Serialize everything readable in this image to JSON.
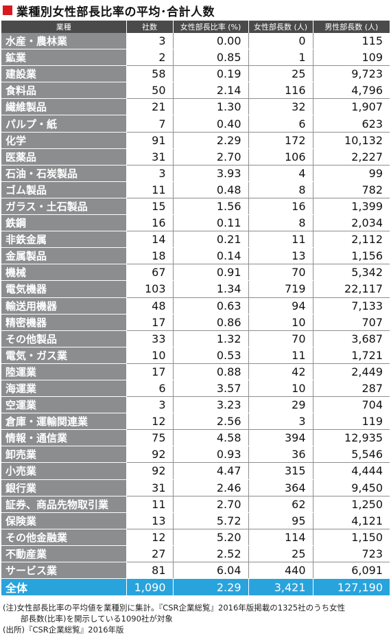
{
  "title": "業種別女性部長比率の平均･合計人数",
  "columns": [
    "業種",
    "社数",
    "女性部長比率 (%)",
    "女性部長数 (人)",
    "男性部長数 (人)"
  ],
  "rows": [
    {
      "name": "水産・農林業",
      "companies": "3",
      "ratio": "0.00",
      "female": "0",
      "male": "115"
    },
    {
      "name": "鉱業",
      "companies": "2",
      "ratio": "0.85",
      "female": "1",
      "male": "109"
    },
    {
      "name": "建設業",
      "companies": "58",
      "ratio": "0.19",
      "female": "25",
      "male": "9,723"
    },
    {
      "name": "食料品",
      "companies": "50",
      "ratio": "2.14",
      "female": "116",
      "male": "4,796"
    },
    {
      "name": "繊維製品",
      "companies": "21",
      "ratio": "1.30",
      "female": "32",
      "male": "1,907"
    },
    {
      "name": "パルプ・紙",
      "companies": "7",
      "ratio": "0.40",
      "female": "6",
      "male": "623"
    },
    {
      "name": "化学",
      "companies": "91",
      "ratio": "2.29",
      "female": "172",
      "male": "10,132"
    },
    {
      "name": "医薬品",
      "companies": "31",
      "ratio": "2.70",
      "female": "106",
      "male": "2,227"
    },
    {
      "name": "石油・石炭製品",
      "companies": "3",
      "ratio": "3.93",
      "female": "4",
      "male": "99"
    },
    {
      "name": "ゴム製品",
      "companies": "11",
      "ratio": "0.48",
      "female": "8",
      "male": "782"
    },
    {
      "name": "ガラス・土石製品",
      "companies": "15",
      "ratio": "1.56",
      "female": "16",
      "male": "1,399"
    },
    {
      "name": "鉄鋼",
      "companies": "16",
      "ratio": "0.11",
      "female": "8",
      "male": "2,034"
    },
    {
      "name": "非鉄金属",
      "companies": "14",
      "ratio": "0.21",
      "female": "11",
      "male": "2,112"
    },
    {
      "name": "金属製品",
      "companies": "18",
      "ratio": "0.14",
      "female": "13",
      "male": "1,156"
    },
    {
      "name": "機械",
      "companies": "67",
      "ratio": "0.91",
      "female": "70",
      "male": "5,342"
    },
    {
      "name": "電気機器",
      "companies": "103",
      "ratio": "1.34",
      "female": "719",
      "male": "22,117"
    },
    {
      "name": "輸送用機器",
      "companies": "48",
      "ratio": "0.63",
      "female": "94",
      "male": "7,133"
    },
    {
      "name": "精密機器",
      "companies": "17",
      "ratio": "0.86",
      "female": "10",
      "male": "707"
    },
    {
      "name": "その他製品",
      "companies": "33",
      "ratio": "1.32",
      "female": "70",
      "male": "3,687"
    },
    {
      "name": "電気・ガス業",
      "companies": "10",
      "ratio": "0.53",
      "female": "11",
      "male": "1,721"
    },
    {
      "name": "陸運業",
      "companies": "17",
      "ratio": "0.88",
      "female": "42",
      "male": "2,449"
    },
    {
      "name": "海運業",
      "companies": "6",
      "ratio": "3.57",
      "female": "10",
      "male": "287"
    },
    {
      "name": "空運業",
      "companies": "3",
      "ratio": "3.23",
      "female": "29",
      "male": "704"
    },
    {
      "name": "倉庫・運輸関連業",
      "companies": "12",
      "ratio": "2.56",
      "female": "3",
      "male": "119"
    },
    {
      "name": "情報・通信業",
      "companies": "75",
      "ratio": "4.58",
      "female": "394",
      "male": "12,935"
    },
    {
      "name": "卸売業",
      "companies": "92",
      "ratio": "0.93",
      "female": "36",
      "male": "5,546"
    },
    {
      "name": "小売業",
      "companies": "92",
      "ratio": "4.47",
      "female": "315",
      "male": "4,444"
    },
    {
      "name": "銀行業",
      "companies": "31",
      "ratio": "2.46",
      "female": "364",
      "male": "9,450"
    },
    {
      "name": "証券、商品先物取引業",
      "companies": "11",
      "ratio": "2.70",
      "female": "62",
      "male": "1,250"
    },
    {
      "name": "保険業",
      "companies": "13",
      "ratio": "5.72",
      "female": "95",
      "male": "4,121"
    },
    {
      "name": "その他金融業",
      "companies": "12",
      "ratio": "5.20",
      "female": "114",
      "male": "1,150"
    },
    {
      "name": "不動産業",
      "companies": "27",
      "ratio": "2.52",
      "female": "25",
      "male": "723"
    },
    {
      "name": "サービス業",
      "companies": "81",
      "ratio": "6.04",
      "female": "440",
      "male": "6,091"
    }
  ],
  "total": {
    "name": "全体",
    "companies": "1,090",
    "ratio": "2.29",
    "female": "3,421",
    "male": "127,190"
  },
  "notes": {
    "note1": "(注)女性部長比率の平均値を業種別に集計。『CSR企業総覧』2016年版掲載の1325社のうち女性",
    "note2": "部長数(比率)を開示している1090社が対象",
    "source": "(出所)『CSR企業総覧』2016年版"
  },
  "colors": {
    "title_square": "#d81920",
    "header_bg": "#4a4a4a",
    "category_bg": "#8c8d8f",
    "total_bg": "#29a3dc"
  }
}
